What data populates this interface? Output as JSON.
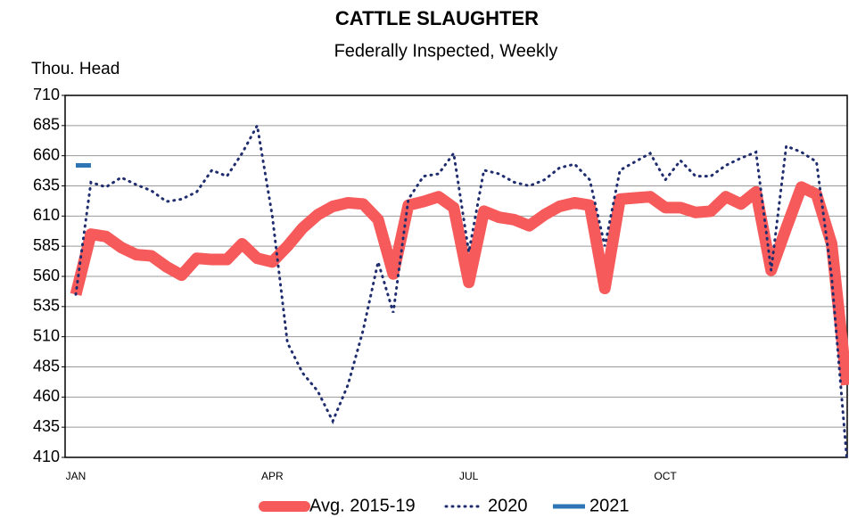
{
  "chart_data": {
    "type": "line",
    "title": "CATTLE SLAUGHTER",
    "subtitle": "Federally Inspected, Weekly",
    "y_label": "Thou. Head",
    "categories": [
      "JAN",
      null,
      null,
      null,
      null,
      null,
      null,
      null,
      null,
      null,
      null,
      null,
      null,
      "APR",
      null,
      null,
      null,
      null,
      null,
      null,
      null,
      null,
      null,
      null,
      null,
      null,
      "JUL",
      null,
      null,
      null,
      null,
      null,
      null,
      null,
      null,
      null,
      null,
      null,
      null,
      "OCT",
      null,
      null,
      null,
      null,
      null,
      null,
      null,
      null,
      null,
      null,
      null,
      null
    ],
    "series": [
      {
        "name": "Avg. 2015-19",
        "color": "#f65a5a",
        "style": "solid",
        "values": [
          545,
          595,
          593,
          584,
          578,
          577,
          568,
          561,
          575,
          574,
          574,
          587,
          575,
          572,
          585,
          600,
          611,
          618,
          621,
          620,
          607,
          562,
          619,
          622,
          626,
          617,
          555,
          614,
          609,
          607,
          602,
          611,
          618,
          621,
          619,
          550,
          624,
          625,
          626,
          617,
          617,
          613,
          614,
          626,
          620,
          630,
          565,
          600,
          634,
          628,
          587,
          470
        ]
      },
      {
        "name": "2020",
        "color": "#1f2d6e",
        "style": "dotted",
        "values": [
          545,
          638,
          634,
          642,
          636,
          631,
          622,
          624,
          630,
          648,
          643,
          662,
          685,
          610,
          505,
          480,
          465,
          440,
          470,
          515,
          572,
          530,
          624,
          643,
          645,
          662,
          580,
          648,
          645,
          638,
          635,
          640,
          650,
          653,
          640,
          585,
          648,
          655,
          662,
          640,
          656,
          643,
          643,
          652,
          658,
          663,
          565,
          668,
          663,
          655,
          560,
          410
        ]
      },
      {
        "name": "2021",
        "color": "#2e75b6",
        "style": "solid",
        "values": [
          652,
          652,
          null,
          null,
          null,
          null,
          null,
          null,
          null,
          null,
          null,
          null,
          null,
          null,
          null,
          null,
          null,
          null,
          null,
          null,
          null,
          null,
          null,
          null,
          null,
          null,
          null,
          null,
          null,
          null,
          null,
          null,
          null,
          null,
          null,
          null,
          null,
          null,
          null,
          null,
          null,
          null,
          null,
          null,
          null,
          null,
          null,
          null,
          null,
          null,
          null,
          null
        ]
      }
    ],
    "ylim": [
      410,
      710
    ],
    "yticks": [
      410,
      435,
      460,
      485,
      510,
      535,
      560,
      585,
      610,
      635,
      660,
      685,
      710
    ],
    "grid": true
  }
}
